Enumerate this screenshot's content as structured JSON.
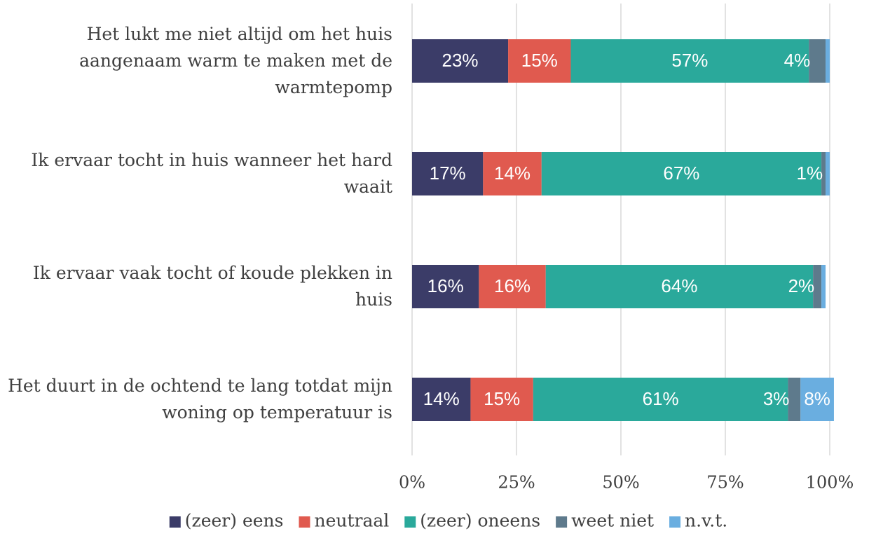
{
  "chart_data": {
    "type": "stacked-bar-horizontal",
    "categories": [
      "Het lukt me niet altijd om het huis aangenaam warm te maken met de warmtepomp",
      "Ik ervaar tocht in huis wanneer het hard waait",
      "Ik ervaar vaak tocht of koude plekken in huis",
      "Het duurt in de ochtend te lang totdat mijn woning op temperatuur is"
    ],
    "series": [
      {
        "name": "(zeer) eens",
        "color": "#3b3c68",
        "values": [
          23,
          17,
          16,
          14
        ],
        "value_labels": [
          "23%",
          "17%",
          "16%",
          "14%"
        ]
      },
      {
        "name": "neutraal",
        "color": "#e05a4f",
        "values": [
          15,
          14,
          16,
          15
        ],
        "value_labels": [
          "15%",
          "14%",
          "16%",
          "15%"
        ]
      },
      {
        "name": "(zeer) oneens",
        "color": "#2aa99b",
        "values": [
          57,
          67,
          64,
          61
        ],
        "value_labels": [
          "57%",
          "67%",
          "64%",
          "61%"
        ]
      },
      {
        "name": "weet niet",
        "color": "#5e7a8c",
        "values": [
          4,
          1,
          2,
          3
        ],
        "value_labels": [
          "4%",
          "1%",
          "2%",
          "3%"
        ]
      },
      {
        "name": "n.v.t.",
        "color": "#6aaee0",
        "values": [
          1,
          1,
          1,
          8
        ],
        "value_labels": [
          null,
          null,
          null,
          "8%"
        ]
      }
    ],
    "xlim": [
      0,
      100
    ],
    "xticks": [
      {
        "value": 0,
        "label": "0%"
      },
      {
        "value": 25,
        "label": "25%"
      },
      {
        "value": 50,
        "label": "50%"
      },
      {
        "value": 75,
        "label": "75%"
      },
      {
        "value": 100,
        "label": "100%"
      }
    ],
    "grid": true,
    "legend": "bottom"
  }
}
